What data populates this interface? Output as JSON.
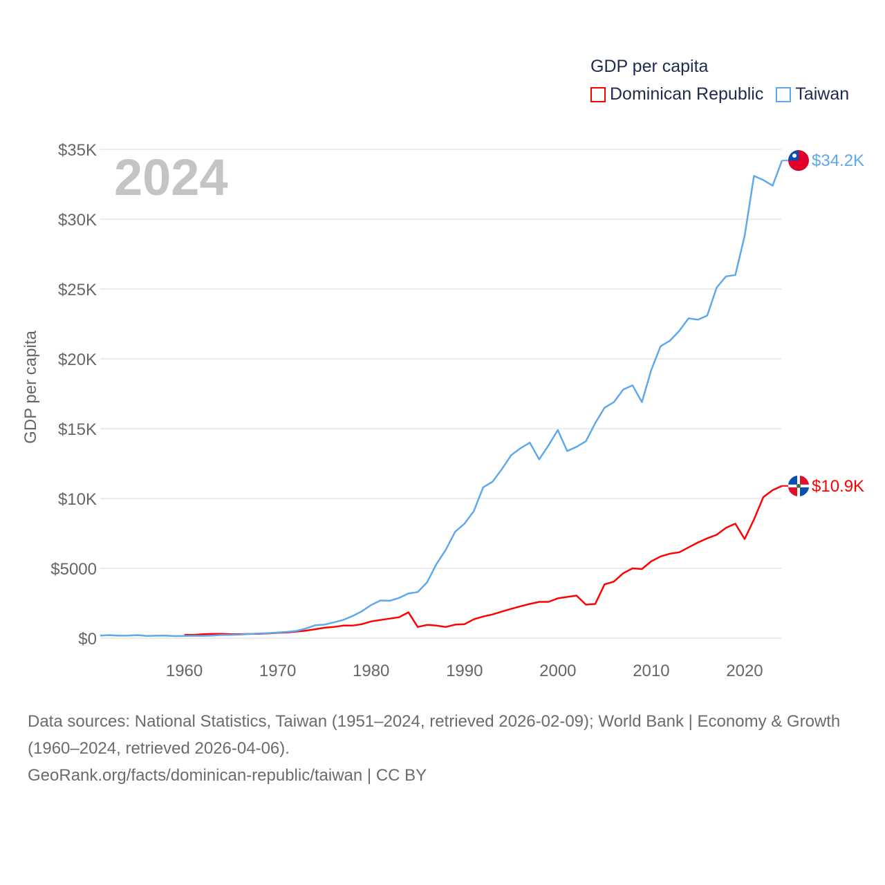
{
  "chart_data": {
    "type": "line",
    "title": "GDP per capita",
    "ylabel": "GDP per capita",
    "xlabel": "",
    "year_watermark": "2024",
    "ylim": [
      0,
      35000
    ],
    "xlim": [
      1951,
      2024
    ],
    "grid": true,
    "legend_position": "top-right",
    "y_ticks": [
      {
        "v": 0,
        "label": "$0"
      },
      {
        "v": 5000,
        "label": "$5000"
      },
      {
        "v": 10000,
        "label": "$10K"
      },
      {
        "v": 15000,
        "label": "$15K"
      },
      {
        "v": 20000,
        "label": "$20K"
      },
      {
        "v": 25000,
        "label": "$25K"
      },
      {
        "v": 30000,
        "label": "$30K"
      },
      {
        "v": 35000,
        "label": "$35K"
      }
    ],
    "x_ticks": [
      {
        "v": 1960,
        "label": "1960"
      },
      {
        "v": 1970,
        "label": "1970"
      },
      {
        "v": 1980,
        "label": "1980"
      },
      {
        "v": 1990,
        "label": "1990"
      },
      {
        "v": 2000,
        "label": "2000"
      },
      {
        "v": 2010,
        "label": "2010"
      },
      {
        "v": 2020,
        "label": "2020"
      }
    ],
    "series": [
      {
        "name": "Dominican Republic",
        "color": "#ff0000",
        "end_label": "$10.9K",
        "start_year": 1960,
        "values": [
          240,
          240,
          280,
          300,
          310,
          280,
          290,
          300,
          310,
          340,
          380,
          410,
          470,
          540,
          640,
          750,
          800,
          900,
          900,
          1000,
          1200,
          1300,
          1400,
          1500,
          1850,
          800,
          950,
          900,
          800,
          970,
          1000,
          1350,
          1550,
          1700,
          1900,
          2100,
          2280,
          2450,
          2600,
          2600,
          2850,
          2950,
          3050,
          2400,
          2450,
          3850,
          4050,
          4650,
          5000,
          4950,
          5500,
          5850,
          6050,
          6150,
          6500,
          6850,
          7150,
          7400,
          7900,
          8200,
          7100,
          8500,
          10100,
          10600,
          10900
        ]
      },
      {
        "name": "Taiwan",
        "color": "#5ea8ec",
        "end_label": "$34.2K",
        "start_year": 1951,
        "values": [
          190,
          220,
          180,
          190,
          220,
          160,
          180,
          190,
          150,
          160,
          170,
          170,
          190,
          230,
          240,
          260,
          300,
          330,
          360,
          400,
          450,
          520,
          690,
          920,
          970,
          1130,
          1300,
          1580,
          1920,
          2370,
          2700,
          2680,
          2880,
          3200,
          3300,
          4000,
          5300,
          6330,
          7620,
          8200,
          9100,
          10800,
          11200,
          12100,
          13100,
          13600,
          14000,
          12800,
          13800,
          14900,
          13400,
          13700,
          14100,
          15400,
          16500,
          16900,
          17800,
          18100,
          16900,
          19200,
          20900,
          21300,
          22000,
          22900,
          22800,
          23100,
          25100,
          25900,
          26000,
          28800,
          33100,
          32800,
          32400,
          34200
        ]
      }
    ]
  },
  "footer": {
    "sources": "Data sources: National Statistics, Taiwan (1951–2024, retrieved 2026-02-09); World Bank | Economy & Growth (1960–2024, retrieved 2026-04-06).",
    "link": "GeoRank.org/facts/dominican-republic/taiwan | CC BY"
  }
}
